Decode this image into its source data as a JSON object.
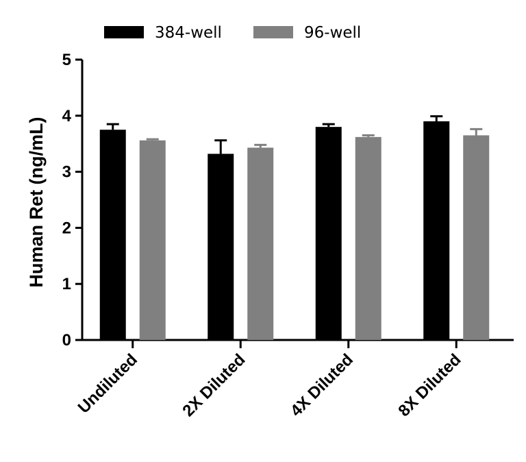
{
  "chart_data": {
    "type": "bar",
    "title": "",
    "xlabel": "",
    "ylabel": "Human Ret (ng/mL)",
    "ylim": [
      0,
      5
    ],
    "yticks": [
      0,
      1,
      2,
      3,
      4,
      5
    ],
    "grid": false,
    "legend_position": "top-left",
    "categories": [
      "Undiluted",
      "2X Diluted",
      "4X Diluted",
      "8X Diluted"
    ],
    "series": [
      {
        "name": "384-well",
        "color": "#000000",
        "values": [
          3.75,
          3.32,
          3.8,
          3.9
        ],
        "errors": [
          0.1,
          0.24,
          0.05,
          0.09
        ]
      },
      {
        "name": "96-well",
        "color": "#808080",
        "values": [
          3.56,
          3.43,
          3.62,
          3.65
        ],
        "errors": [
          0.02,
          0.05,
          0.03,
          0.11
        ]
      }
    ]
  }
}
